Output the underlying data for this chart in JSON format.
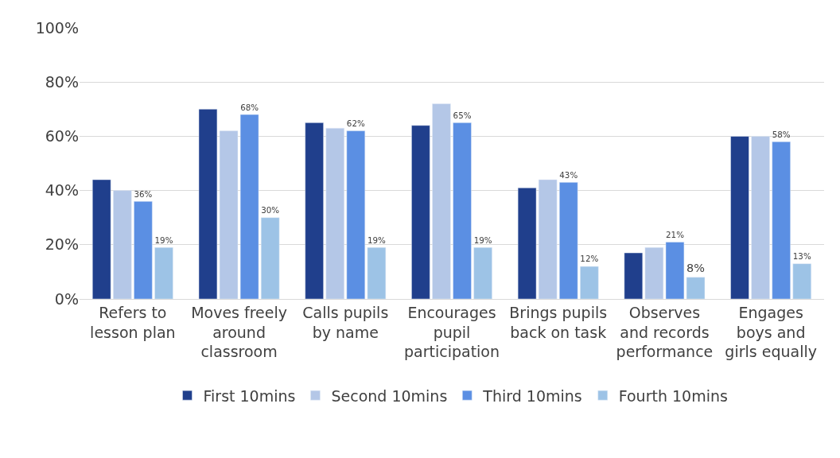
{
  "chart_data": {
    "type": "bar",
    "categories": [
      "Refers to\nlesson plan",
      "Moves freely\naround\nclassroom",
      "Calls pupils\nby name",
      "Encourages\npupil\nparticipation",
      "Brings pupils\nback on task",
      "Observes\nand records\nperformance",
      "Engages\nboys and\ngirls equally"
    ],
    "series": [
      {
        "name": "First 10mins",
        "color": "#203f8c",
        "values": [
          44,
          70,
          65,
          64,
          41,
          17,
          60
        ]
      },
      {
        "name": "Second 10mins",
        "color": "#b4c7e7",
        "values": [
          40,
          62,
          63,
          72,
          44,
          19,
          60
        ]
      },
      {
        "name": "Third 10mins",
        "color": "#5b8fe3",
        "values": [
          36,
          68,
          62,
          65,
          43,
          21,
          58
        ],
        "value_labels": [
          "36%",
          "68%",
          "62%",
          "65%",
          "43%",
          "21%",
          "58%"
        ]
      },
      {
        "name": "Fourth 10mins",
        "color": "#9dc3e6",
        "values": [
          19,
          30,
          19,
          19,
          12,
          8,
          13
        ],
        "value_labels": [
          "19%",
          "30%",
          "19%",
          "19%",
          "12%",
          "8%",
          "13%"
        ]
      }
    ],
    "ylim": [
      0,
      100
    ],
    "yticks": [
      {
        "value": 0,
        "label": "0%"
      },
      {
        "value": 20,
        "label": "20%"
      },
      {
        "value": 40,
        "label": "40%"
      },
      {
        "value": 60,
        "label": "60%"
      },
      {
        "value": 80,
        "label": "80%"
      },
      {
        "value": 100,
        "label": "100%"
      }
    ],
    "grid": "y",
    "legend": "bottom"
  }
}
